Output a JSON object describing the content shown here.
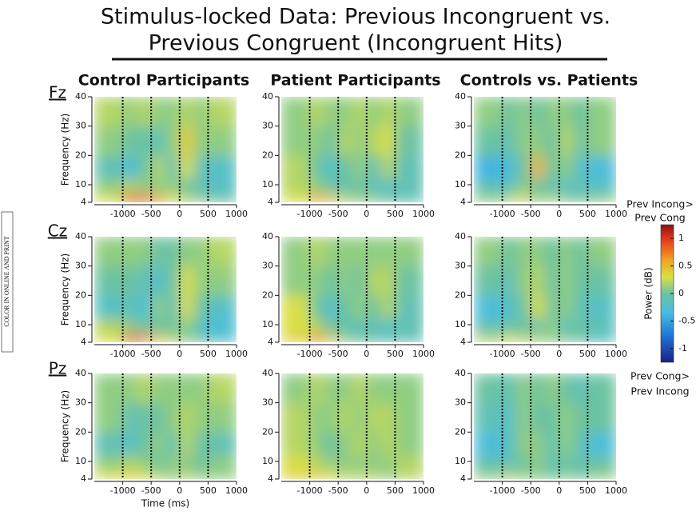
{
  "title": [
    "Stimulus-locked Data: Previous Incongruent vs.",
    "Previous Congruent (Incongruent Hits)"
  ],
  "column_titles": [
    "Control Participants",
    "Patient Participants",
    "Controls vs. Patients"
  ],
  "row_labels": [
    "Fz",
    "Cz",
    "Pz"
  ],
  "side_note": "COLOR IN ONLINE AND PRINT",
  "event_lines": [
    -1000,
    -500,
    0,
    500
  ],
  "colorbar": {
    "label": "Power (dB)",
    "top_label": [
      "Prev Incong>",
      "Prev Cong"
    ],
    "bottom_label": [
      "Prev Cong>",
      "Prev Incong"
    ],
    "ylim": [
      -1.25,
      1.25
    ],
    "yticks": [
      1,
      0.5,
      0,
      -0.5,
      -1
    ],
    "colormap": [
      {
        "value": -1.25,
        "color": "#1b1f8a"
      },
      {
        "value": -0.75,
        "color": "#1f78d6"
      },
      {
        "value": -0.35,
        "color": "#48bde3"
      },
      {
        "value": 0,
        "color": "#6cc3a2"
      },
      {
        "value": 0.3,
        "color": "#d9e043"
      },
      {
        "value": 0.6,
        "color": "#f2a322"
      },
      {
        "value": 1,
        "color": "#e2361c"
      },
      {
        "value": 1.25,
        "color": "#8a1212"
      }
    ]
  },
  "chart_data": [
    {
      "type": "heatmap",
      "ylabel": "Frequency (Hz)",
      "xlim": [
        -1500,
        1000
      ],
      "ylim": [
        4,
        40
      ],
      "xticks": [
        -1000,
        -500,
        0,
        500,
        1000
      ],
      "yticks": [
        4,
        10,
        20,
        30,
        40
      ],
      "x_bins": [
        -1500,
        -1000,
        -750,
        -500,
        -250,
        0,
        250,
        500,
        1000
      ],
      "y_bins": [
        4,
        7,
        12,
        20,
        30,
        40
      ],
      "values": [
        [
          0.3,
          0.9,
          0.8,
          0.6,
          0.3,
          0.2,
          0.1,
          0.0
        ],
        [
          0.1,
          0.2,
          0.1,
          0.1,
          0.1,
          0.0,
          -0.1,
          -0.2
        ],
        [
          -0.1,
          -0.3,
          0.0,
          0.2,
          -0.1,
          0.3,
          -0.1,
          -0.2
        ],
        [
          0.1,
          0.0,
          0.0,
          -0.1,
          0.1,
          0.4,
          0.1,
          0.1
        ],
        [
          0.2,
          0.1,
          0.2,
          0.1,
          0.1,
          0.2,
          0.1,
          0.2
        ]
      ]
    },
    {
      "type": "heatmap",
      "xlim": [
        -1500,
        1000
      ],
      "ylim": [
        4,
        40
      ],
      "xticks": [
        -1000,
        -500,
        0,
        500,
        1000
      ],
      "yticks": [
        4,
        10,
        20,
        30,
        40
      ],
      "x_bins": [
        -1500,
        -1000,
        -750,
        -500,
        -250,
        0,
        250,
        500,
        1000
      ],
      "y_bins": [
        4,
        7,
        12,
        20,
        30,
        40
      ],
      "values": [
        [
          0.3,
          0.6,
          0.4,
          0.2,
          0.1,
          0.1,
          0.0,
          -0.1
        ],
        [
          0.2,
          0.1,
          0.0,
          -0.1,
          0.0,
          -0.1,
          -0.2,
          -0.1
        ],
        [
          0.2,
          0.0,
          -0.2,
          0.0,
          0.1,
          -0.1,
          0.2,
          -0.1
        ],
        [
          0.1,
          0.1,
          0.0,
          0.2,
          0.1,
          0.2,
          0.3,
          0.0
        ],
        [
          0.1,
          0.2,
          0.1,
          0.1,
          0.2,
          0.1,
          0.2,
          0.1
        ]
      ]
    },
    {
      "type": "heatmap",
      "xlim": [
        -1500,
        1000
      ],
      "ylim": [
        4,
        40
      ],
      "xticks": [
        -1000,
        -500,
        0,
        500,
        1000
      ],
      "yticks": [
        4,
        10,
        20,
        30,
        40
      ],
      "x_bins": [
        -1500,
        -1000,
        -750,
        -500,
        -250,
        0,
        250,
        500,
        1000
      ],
      "y_bins": [
        4,
        7,
        12,
        20,
        30,
        40
      ],
      "values": [
        [
          0.1,
          0.2,
          0.3,
          0.1,
          0.2,
          0.1,
          0.0,
          0.1
        ],
        [
          -0.1,
          -0.2,
          0.1,
          0.0,
          -0.1,
          -0.2,
          -0.1,
          -0.2
        ],
        [
          -0.4,
          -0.3,
          0.0,
          0.5,
          0.0,
          0.1,
          -0.2,
          -0.3
        ],
        [
          0.0,
          -0.1,
          0.1,
          0.1,
          0.0,
          0.2,
          0.0,
          0.1
        ],
        [
          0.1,
          0.0,
          0.1,
          0.0,
          0.1,
          0.1,
          0.0,
          0.1
        ]
      ]
    },
    {
      "type": "heatmap",
      "ylabel": "Frequency (Hz)",
      "xlim": [
        -1500,
        1000
      ],
      "ylim": [
        4,
        40
      ],
      "xticks": [
        -1000,
        -500,
        0,
        500,
        1000
      ],
      "yticks": [
        4,
        10,
        20,
        30,
        40
      ],
      "x_bins": [
        -1500,
        -1000,
        -750,
        -500,
        -250,
        0,
        250,
        500,
        1000
      ],
      "y_bins": [
        4,
        7,
        12,
        20,
        30,
        40
      ],
      "values": [
        [
          0.3,
          0.9,
          0.7,
          0.4,
          0.2,
          0.1,
          0.0,
          -0.2
        ],
        [
          0.2,
          0.1,
          0.0,
          0.0,
          0.0,
          0.1,
          -0.2,
          -0.3
        ],
        [
          -0.2,
          -0.1,
          -0.3,
          0.1,
          -0.1,
          0.3,
          0.0,
          -0.2
        ],
        [
          0.0,
          0.0,
          -0.1,
          -0.2,
          0.0,
          0.3,
          0.1,
          0.1
        ],
        [
          0.1,
          0.1,
          0.1,
          0.0,
          0.0,
          0.1,
          0.1,
          0.2
        ]
      ]
    },
    {
      "type": "heatmap",
      "xlim": [
        -1500,
        1000
      ],
      "ylim": [
        4,
        40
      ],
      "xticks": [
        -1000,
        -500,
        0,
        500,
        1000
      ],
      "yticks": [
        4,
        10,
        20,
        30,
        40
      ],
      "x_bins": [
        -1500,
        -1000,
        -750,
        -500,
        -250,
        0,
        250,
        500,
        1000
      ],
      "y_bins": [
        4,
        7,
        12,
        20,
        30,
        40
      ],
      "values": [
        [
          0.4,
          0.7,
          0.4,
          0.1,
          0.0,
          0.0,
          -0.1,
          -0.1
        ],
        [
          0.3,
          0.2,
          0.0,
          -0.1,
          -0.1,
          -0.1,
          -0.2,
          -0.1
        ],
        [
          0.3,
          0.0,
          -0.2,
          0.0,
          0.1,
          0.0,
          0.2,
          -0.1
        ],
        [
          0.1,
          0.1,
          0.0,
          0.1,
          0.0,
          0.2,
          0.2,
          0.0
        ],
        [
          0.1,
          0.2,
          0.1,
          0.1,
          0.1,
          0.1,
          0.1,
          0.1
        ]
      ]
    },
    {
      "type": "heatmap",
      "xlim": [
        -1500,
        1000
      ],
      "ylim": [
        4,
        40
      ],
      "xticks": [
        -1000,
        -500,
        0,
        500,
        1000
      ],
      "yticks": [
        4,
        10,
        20,
        30,
        40
      ],
      "x_bins": [
        -1500,
        -1000,
        -750,
        -500,
        -250,
        0,
        250,
        500,
        1000
      ],
      "y_bins": [
        4,
        7,
        12,
        20,
        30,
        40
      ],
      "values": [
        [
          0.2,
          0.3,
          0.2,
          0.2,
          0.1,
          0.1,
          0.0,
          -0.2
        ],
        [
          -0.1,
          -0.1,
          0.0,
          -0.1,
          0.1,
          -0.2,
          0.0,
          -0.1
        ],
        [
          -0.3,
          -0.2,
          0.0,
          0.3,
          0.0,
          0.1,
          -0.1,
          -0.2
        ],
        [
          0.0,
          -0.1,
          0.1,
          0.2,
          0.0,
          0.1,
          0.0,
          0.0
        ],
        [
          0.1,
          0.0,
          0.1,
          0.1,
          0.0,
          0.1,
          0.0,
          0.1
        ]
      ]
    },
    {
      "type": "heatmap",
      "ylabel": "Frequency (Hz)",
      "xlabel": "Time (ms)",
      "xlim": [
        -1500,
        1000
      ],
      "ylim": [
        4,
        40
      ],
      "xticks": [
        -1000,
        -500,
        0,
        500,
        1000
      ],
      "yticks": [
        4,
        10,
        20,
        30,
        40
      ],
      "x_bins": [
        -1500,
        -1000,
        -750,
        -500,
        -250,
        0,
        250,
        500,
        1000
      ],
      "y_bins": [
        4,
        7,
        12,
        20,
        30,
        40
      ],
      "values": [
        [
          0.3,
          0.4,
          0.3,
          0.2,
          0.1,
          0.2,
          0.1,
          0.1
        ],
        [
          0.1,
          0.2,
          0.1,
          0.0,
          0.1,
          0.1,
          0.0,
          0.1
        ],
        [
          -0.1,
          -0.2,
          0.0,
          0.1,
          -0.1,
          0.2,
          0.0,
          -0.1
        ],
        [
          0.1,
          -0.1,
          0.0,
          0.0,
          0.1,
          0.2,
          0.1,
          0.1
        ],
        [
          0.1,
          0.1,
          0.2,
          0.1,
          0.1,
          0.1,
          0.1,
          0.2
        ]
      ]
    },
    {
      "type": "heatmap",
      "xlim": [
        -1500,
        1000
      ],
      "ylim": [
        4,
        40
      ],
      "xticks": [
        -1000,
        -500,
        0,
        500,
        1000
      ],
      "yticks": [
        4,
        10,
        20,
        30,
        40
      ],
      "x_bins": [
        -1500,
        -1000,
        -750,
        -500,
        -250,
        0,
        250,
        500,
        1000
      ],
      "y_bins": [
        4,
        7,
        12,
        20,
        30,
        40
      ],
      "values": [
        [
          0.4,
          0.4,
          0.3,
          0.2,
          0.2,
          0.2,
          0.1,
          0.2
        ],
        [
          0.3,
          0.2,
          0.1,
          0.1,
          0.1,
          0.1,
          0.1,
          0.2
        ],
        [
          0.2,
          0.1,
          0.0,
          0.1,
          0.2,
          0.1,
          0.2,
          0.1
        ],
        [
          0.2,
          0.1,
          0.1,
          0.2,
          0.1,
          0.2,
          0.2,
          0.1
        ],
        [
          0.1,
          0.2,
          0.1,
          0.1,
          0.2,
          0.1,
          0.1,
          0.1
        ]
      ]
    },
    {
      "type": "heatmap",
      "xlim": [
        -1500,
        1000
      ],
      "ylim": [
        4,
        40
      ],
      "xticks": [
        -1000,
        -500,
        0,
        500,
        1000
      ],
      "yticks": [
        4,
        10,
        20,
        30,
        40
      ],
      "x_bins": [
        -1500,
        -1000,
        -750,
        -500,
        -250,
        0,
        250,
        500,
        1000
      ],
      "y_bins": [
        4,
        7,
        12,
        20,
        30,
        40
      ],
      "values": [
        [
          0.1,
          0.2,
          0.1,
          0.1,
          0.0,
          0.1,
          0.0,
          0.1
        ],
        [
          -0.1,
          -0.1,
          0.0,
          0.1,
          -0.1,
          0.0,
          -0.1,
          0.0
        ],
        [
          -0.3,
          -0.2,
          0.1,
          0.1,
          -0.1,
          0.1,
          -0.1,
          -0.3
        ],
        [
          -0.1,
          -0.2,
          0.1,
          0.0,
          0.0,
          0.1,
          0.0,
          0.0
        ],
        [
          0.0,
          -0.1,
          0.1,
          0.0,
          0.1,
          0.0,
          -0.1,
          0.0
        ]
      ]
    }
  ]
}
